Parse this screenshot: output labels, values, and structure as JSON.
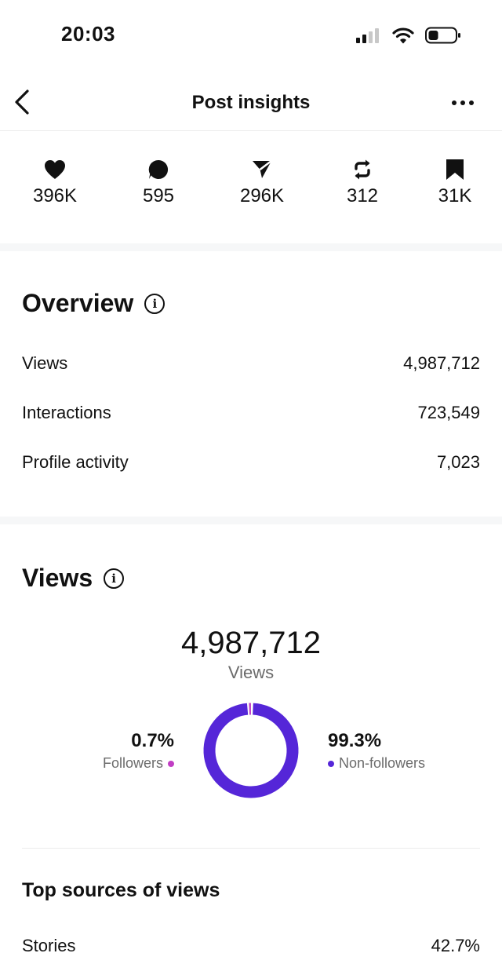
{
  "status_bar": {
    "time": "20:03"
  },
  "nav": {
    "title": "Post insights"
  },
  "stats": [
    {
      "icon": "heart-icon",
      "value": "396K"
    },
    {
      "icon": "comment-icon",
      "value": "595"
    },
    {
      "icon": "send-icon",
      "value": "296K"
    },
    {
      "icon": "repost-icon",
      "value": "312"
    },
    {
      "icon": "bookmark-icon",
      "value": "31K"
    }
  ],
  "overview": {
    "title": "Overview",
    "rows": [
      {
        "label": "Views",
        "value": "4,987,712"
      },
      {
        "label": "Interactions",
        "value": "723,549"
      },
      {
        "label": "Profile activity",
        "value": "7,023"
      }
    ]
  },
  "views": {
    "title": "Views",
    "total": "4,987,712",
    "caption": "Views",
    "followers": {
      "pct": "0.7%",
      "label": "Followers",
      "color": "#c13ec4",
      "fraction": 0.007
    },
    "non_followers": {
      "pct": "99.3%",
      "label": "Non-followers",
      "color": "#5526d8",
      "fraction": 0.993
    }
  },
  "top_sources": {
    "title": "Top sources of views",
    "rows": [
      {
        "label": "Stories",
        "value": "42.7%"
      }
    ]
  }
}
